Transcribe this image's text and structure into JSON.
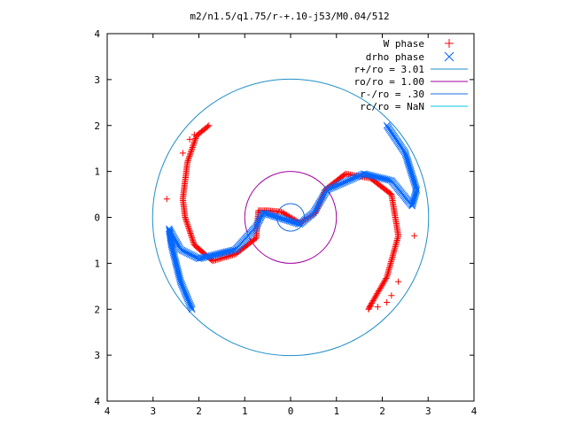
{
  "chart_data": {
    "type": "scatter",
    "title": "m2/n1.5/q1.75/r-+.10-j53/M0.04/512",
    "xlabel": "",
    "ylabel": "",
    "xlim": [
      -4,
      4
    ],
    "ylim": [
      -4,
      4
    ],
    "x_ticks": [
      -4,
      -3,
      -2,
      -1,
      0,
      1,
      2,
      3,
      4
    ],
    "x_tick_labels": [
      "4",
      "3",
      "2",
      "1",
      "0",
      "1",
      "2",
      "3",
      "4"
    ],
    "y_ticks": [
      -4,
      -3,
      -2,
      -1,
      0,
      1,
      2,
      3,
      4
    ],
    "y_tick_labels": [
      "4",
      "3",
      "2",
      "1",
      "0",
      "1",
      "2",
      "3",
      "4"
    ],
    "grid": false,
    "legend_position": "top-right",
    "series": [
      {
        "name": "W phase",
        "marker": "plus",
        "color": "#ff0000",
        "path": [
          [
            -1.78,
            2.0
          ],
          [
            -2.05,
            1.78
          ],
          [
            -2.25,
            1.2
          ],
          [
            -2.35,
            0.4
          ],
          [
            -2.3,
            0.0
          ],
          [
            -2.1,
            -0.6
          ],
          [
            -1.7,
            -0.95
          ],
          [
            -1.2,
            -0.8
          ],
          [
            -0.75,
            -0.45
          ],
          [
            -0.7,
            0.15
          ],
          [
            -0.5,
            0.15
          ],
          [
            -0.2,
            0.12
          ],
          [
            0.2,
            -0.12
          ],
          [
            0.55,
            0.1
          ],
          [
            0.75,
            0.6
          ],
          [
            1.2,
            0.95
          ],
          [
            1.75,
            0.85
          ],
          [
            2.2,
            0.5
          ],
          [
            2.35,
            -0.4
          ],
          [
            2.1,
            -1.3
          ],
          [
            1.75,
            -1.9
          ],
          [
            1.7,
            -2.0
          ]
        ],
        "scatter_points": [
          [
            -2.7,
            0.4
          ],
          [
            -2.35,
            1.4
          ],
          [
            -2.2,
            1.7
          ],
          [
            -2.1,
            1.8
          ],
          [
            2.7,
            -0.4
          ],
          [
            2.35,
            -1.4
          ],
          [
            2.2,
            -1.7
          ],
          [
            2.1,
            -1.85
          ],
          [
            1.9,
            -1.95
          ]
        ]
      },
      {
        "name": "drho phase",
        "marker": "x",
        "color": "#0066ff",
        "path": [
          [
            2.1,
            2.0
          ],
          [
            2.5,
            1.4
          ],
          [
            2.75,
            0.6
          ],
          [
            2.65,
            0.25
          ],
          [
            2.2,
            0.8
          ],
          [
            1.6,
            0.95
          ],
          [
            0.8,
            0.6
          ],
          [
            0.5,
            0.1
          ],
          [
            0.2,
            -0.15
          ],
          [
            -0.6,
            0.1
          ],
          [
            -0.75,
            -0.2
          ],
          [
            -1.2,
            -0.7
          ],
          [
            -2.0,
            -0.9
          ],
          [
            -2.4,
            -0.7
          ],
          [
            -2.65,
            -0.25
          ],
          [
            -2.6,
            -0.6
          ],
          [
            -2.4,
            -1.4
          ],
          [
            -2.15,
            -2.0
          ]
        ]
      },
      {
        "name": "r+/ro = 3.01",
        "type": "circle",
        "radius": 3.01,
        "color": "#1f8ec8"
      },
      {
        "name": "ro/ro = 1.00",
        "type": "circle",
        "radius": 1.0,
        "color": "#a200a2"
      },
      {
        "name": "r-/ro = .30",
        "type": "circle",
        "radius": 0.3,
        "color": "#1a6be0"
      },
      {
        "name": "rc/ro = NaN",
        "type": "circle",
        "radius": null,
        "color": "#00c8e0"
      }
    ]
  }
}
